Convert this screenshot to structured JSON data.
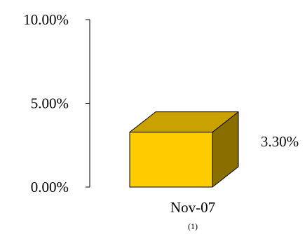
{
  "chart_data": {
    "type": "bar",
    "style": "3d-column",
    "categories": [
      "Nov-07"
    ],
    "category_footnotes": [
      "(1)"
    ],
    "values": [
      3.3
    ],
    "data_labels": [
      "3.30%"
    ],
    "yticks": [
      0,
      5,
      10
    ],
    "ytick_labels": [
      "0.00%",
      "5.00%",
      "10.00%"
    ],
    "ylim": [
      0,
      10
    ],
    "title": "",
    "xlabel": "",
    "ylabel": "",
    "grid": false,
    "legend": "none",
    "colors": {
      "front": "#FFCC00",
      "top": "#C9A100",
      "side": "#8A6E00",
      "outline": "#000000",
      "axis": "#000000"
    }
  }
}
